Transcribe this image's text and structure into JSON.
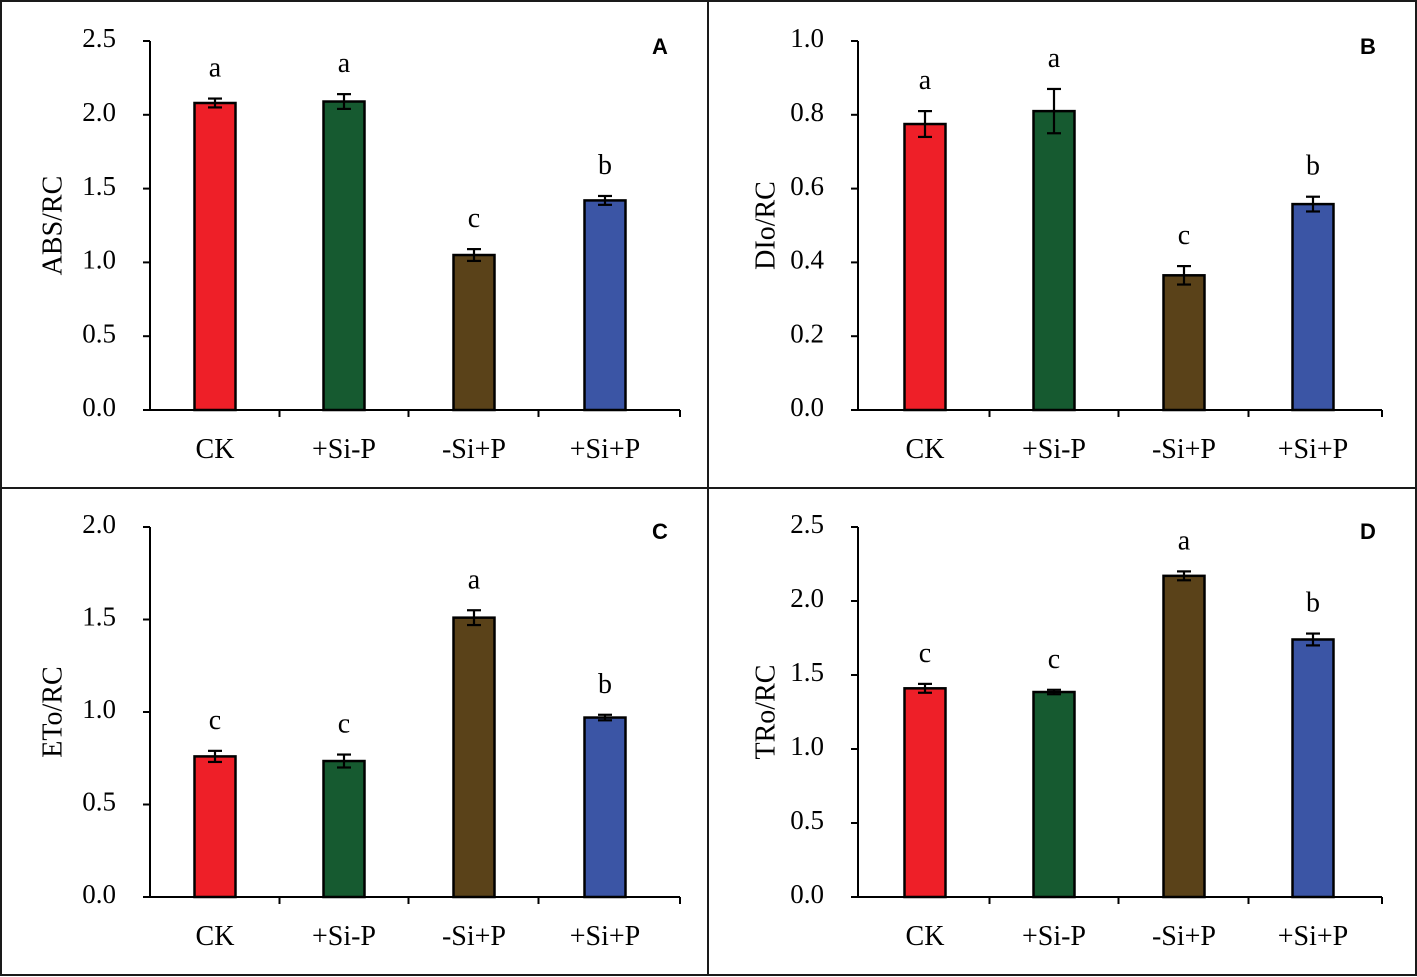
{
  "colors": {
    "CK": "#ee1f28",
    "+Si-P": "#165a30",
    "-Si+P": "#5a4219",
    "+Si+P": "#3b55a5"
  },
  "chart_data": [
    {
      "type": "bar",
      "panel": "A",
      "categories": [
        "CK",
        "+Si-P",
        "-Si+P",
        "+Si+P"
      ],
      "values": [
        2.08,
        2.09,
        1.05,
        1.42
      ],
      "errors": [
        0.03,
        0.05,
        0.04,
        0.03
      ],
      "significance": [
        "a",
        "a",
        "c",
        "b"
      ],
      "ylabel": "ABS/RC",
      "ylim": [
        0,
        2.5
      ],
      "yticks": [
        "0.0",
        "0.5",
        "1.0",
        "1.5",
        "2.0",
        "2.5"
      ]
    },
    {
      "type": "bar",
      "panel": "B",
      "categories": [
        "CK",
        "+Si-P",
        "-Si+P",
        "+Si+P"
      ],
      "values": [
        0.775,
        0.81,
        0.365,
        0.558
      ],
      "errors": [
        0.035,
        0.06,
        0.025,
        0.02
      ],
      "significance": [
        "a",
        "a",
        "c",
        "b"
      ],
      "ylabel": "DIo/RC",
      "ylim": [
        0,
        1.0
      ],
      "yticks": [
        "0.0",
        "0.2",
        "0.4",
        "0.6",
        "0.8",
        "1.0"
      ]
    },
    {
      "type": "bar",
      "panel": "C",
      "categories": [
        "CK",
        "+Si-P",
        "-Si+P",
        "+Si+P"
      ],
      "values": [
        0.76,
        0.735,
        1.51,
        0.97
      ],
      "errors": [
        0.03,
        0.035,
        0.04,
        0.015
      ],
      "significance": [
        "c",
        "c",
        "a",
        "b"
      ],
      "ylabel": "ETo/RC",
      "ylim": [
        0,
        2.0
      ],
      "yticks": [
        "0.0",
        "0.5",
        "1.0",
        "1.5",
        "2.0"
      ]
    },
    {
      "type": "bar",
      "panel": "D",
      "categories": [
        "CK",
        "+Si-P",
        "-Si+P",
        "+Si+P"
      ],
      "values": [
        1.41,
        1.385,
        2.17,
        1.74
      ],
      "errors": [
        0.03,
        0.015,
        0.03,
        0.04
      ],
      "significance": [
        "c",
        "c",
        "a",
        "b"
      ],
      "ylabel": "TRo/RC",
      "ylim": [
        0,
        2.5
      ],
      "yticks": [
        "0.0",
        "0.5",
        "1.0",
        "1.5",
        "2.0",
        "2.5"
      ]
    }
  ]
}
